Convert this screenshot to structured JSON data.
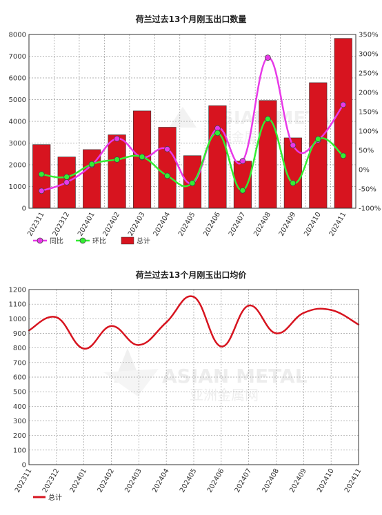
{
  "watermark": {
    "brand_en": "ASIAN METAL",
    "brand_cn": "亚洲金属网"
  },
  "chart_data": [
    {
      "type": "bar",
      "title": "荷兰过去13个月刚玉出口数量",
      "categories": [
        "202311",
        "202312",
        "202401",
        "202402",
        "202403",
        "202404",
        "202405",
        "202406",
        "202407",
        "202408",
        "202409",
        "202410",
        "202411"
      ],
      "series": [
        {
          "name": "总计",
          "kind": "bar",
          "axis": "left",
          "color": "#d7141f",
          "values": [
            2930,
            2360,
            2700,
            3380,
            4480,
            3730,
            2420,
            4720,
            2170,
            4960,
            3240,
            5780,
            7820
          ]
        },
        {
          "name": "同比",
          "kind": "line",
          "axis": "right",
          "color": "#e839e8",
          "values": [
            -55,
            -33,
            12,
            80,
            32,
            53,
            -35,
            107,
            22,
            290,
            63,
            76,
            168
          ]
        },
        {
          "name": "环比",
          "kind": "line",
          "axis": "right",
          "color": "#33ee33",
          "values": [
            -12,
            -19,
            14,
            26,
            33,
            -16,
            -35,
            95,
            -54,
            131,
            -35,
            79,
            36
          ]
        }
      ],
      "ylim": [
        0,
        8000
      ],
      "yticks": [
        "0",
        "1000",
        "2000",
        "3000",
        "4000",
        "5000",
        "6000",
        "7000",
        "8000"
      ],
      "y2lim": [
        -100,
        350
      ],
      "y2ticks": [
        "-100%",
        "-50%",
        "0%",
        "50%",
        "100%",
        "150%",
        "200%",
        "250%",
        "300%",
        "350%"
      ],
      "legend": [
        "同比",
        "环比",
        "总计"
      ],
      "legend_position": "bottom-left",
      "grid": true
    },
    {
      "type": "line",
      "title": "荷兰过去13个月刚玉出口均价",
      "categories": [
        "202311",
        "202312",
        "202401",
        "202402",
        "202403",
        "202404",
        "202405",
        "202406",
        "202407",
        "202408",
        "202409",
        "202410",
        "202411"
      ],
      "series": [
        {
          "name": "总计",
          "color": "#d7141f",
          "values": [
            920,
            1010,
            795,
            950,
            820,
            975,
            1150,
            810,
            1090,
            900,
            1040,
            1060,
            960
          ]
        }
      ],
      "ylim": [
        0,
        1200
      ],
      "yticks": [
        "0",
        "100",
        "200",
        "300",
        "400",
        "500",
        "600",
        "700",
        "800",
        "900",
        "1000",
        "1100",
        "1200"
      ],
      "legend": [
        "总计"
      ],
      "legend_position": "bottom-left",
      "grid": true
    }
  ]
}
